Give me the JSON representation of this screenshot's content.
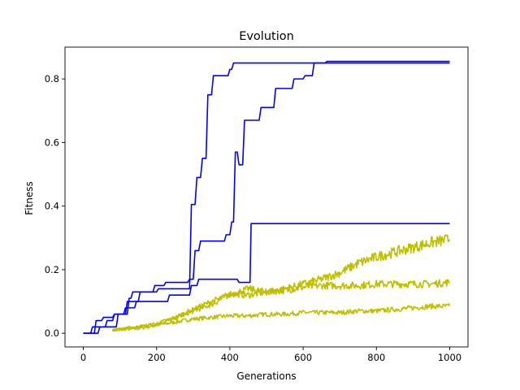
{
  "chart_data": {
    "type": "line",
    "title": "Evolution",
    "xlabel": "Generations",
    "ylabel": "Fitness",
    "xlim": [
      -50,
      1050
    ],
    "ylim": [
      -0.043,
      0.9
    ],
    "xticks": [
      0,
      200,
      400,
      600,
      800,
      1000
    ],
    "xtick_labels": [
      "0",
      "200",
      "400",
      "600",
      "800",
      "1000"
    ],
    "yticks": [
      0.0,
      0.2,
      0.4,
      0.6,
      0.8
    ],
    "ytick_labels": [
      "0.0",
      "0.2",
      "0.4",
      "0.6",
      "0.8"
    ],
    "grid": false,
    "legend": "none",
    "series": [
      {
        "color": "#0000ff",
        "style": "step",
        "points": [
          [
            0,
            0.0
          ],
          [
            20,
            0.0
          ],
          [
            25,
            0.02
          ],
          [
            60,
            0.02
          ],
          [
            65,
            0.04
          ],
          [
            80,
            0.04
          ],
          [
            85,
            0.06
          ],
          [
            110,
            0.06
          ],
          [
            115,
            0.08
          ],
          [
            140,
            0.08
          ],
          [
            145,
            0.1
          ],
          [
            230,
            0.1
          ],
          [
            235,
            0.12
          ],
          [
            290,
            0.12
          ],
          [
            295,
            0.15
          ],
          [
            310,
            0.15
          ],
          [
            315,
            0.17
          ],
          [
            420,
            0.17
          ],
          [
            425,
            0.16
          ],
          [
            455,
            0.16
          ],
          [
            458,
            0.345
          ],
          [
            1000,
            0.345
          ]
        ]
      },
      {
        "color": "#0000ff",
        "style": "step",
        "points": [
          [
            0,
            0.0
          ],
          [
            30,
            0.0
          ],
          [
            35,
            0.04
          ],
          [
            50,
            0.04
          ],
          [
            55,
            0.05
          ],
          [
            80,
            0.05
          ],
          [
            85,
            0.06
          ],
          [
            120,
            0.06
          ],
          [
            125,
            0.11
          ],
          [
            130,
            0.11
          ],
          [
            135,
            0.13
          ],
          [
            190,
            0.13
          ],
          [
            195,
            0.15
          ],
          [
            220,
            0.15
          ],
          [
            225,
            0.16
          ],
          [
            285,
            0.16
          ],
          [
            290,
            0.17
          ],
          [
            300,
            0.17
          ],
          [
            305,
            0.26
          ],
          [
            315,
            0.26
          ],
          [
            320,
            0.29
          ],
          [
            385,
            0.29
          ],
          [
            390,
            0.31
          ],
          [
            400,
            0.31
          ],
          [
            405,
            0.35
          ],
          [
            410,
            0.35
          ],
          [
            415,
            0.57
          ],
          [
            420,
            0.57
          ],
          [
            425,
            0.53
          ],
          [
            435,
            0.53
          ],
          [
            440,
            0.67
          ],
          [
            480,
            0.67
          ],
          [
            485,
            0.71
          ],
          [
            520,
            0.71
          ],
          [
            525,
            0.77
          ],
          [
            570,
            0.77
          ],
          [
            575,
            0.8
          ],
          [
            600,
            0.8
          ],
          [
            605,
            0.81
          ],
          [
            625,
            0.81
          ],
          [
            630,
            0.85
          ],
          [
            1000,
            0.85
          ]
        ]
      },
      {
        "color": "#0000ff",
        "style": "step",
        "points": [
          [
            0,
            0.0
          ],
          [
            40,
            0.0
          ],
          [
            45,
            0.02
          ],
          [
            90,
            0.02
          ],
          [
            95,
            0.06
          ],
          [
            115,
            0.06
          ],
          [
            120,
            0.1
          ],
          [
            150,
            0.1
          ],
          [
            155,
            0.13
          ],
          [
            200,
            0.13
          ],
          [
            205,
            0.14
          ],
          [
            225,
            0.14
          ],
          [
            230,
            0.14
          ],
          [
            290,
            0.14
          ],
          [
            295,
            0.405
          ],
          [
            305,
            0.405
          ],
          [
            310,
            0.49
          ],
          [
            320,
            0.49
          ],
          [
            325,
            0.55
          ],
          [
            335,
            0.55
          ],
          [
            340,
            0.75
          ],
          [
            350,
            0.75
          ],
          [
            355,
            0.81
          ],
          [
            395,
            0.81
          ],
          [
            400,
            0.83
          ],
          [
            405,
            0.83
          ],
          [
            410,
            0.85
          ],
          [
            660,
            0.85
          ],
          [
            665,
            0.855
          ],
          [
            1000,
            0.855
          ]
        ]
      },
      {
        "color": "#bfbf00",
        "style": "noisy",
        "points": [
          [
            80,
            0.01
          ],
          [
            150,
            0.015
          ],
          [
            200,
            0.025
          ],
          [
            250,
            0.035
          ],
          [
            300,
            0.045
          ],
          [
            350,
            0.05
          ],
          [
            400,
            0.055
          ],
          [
            450,
            0.055
          ],
          [
            500,
            0.06
          ],
          [
            550,
            0.06
          ],
          [
            600,
            0.065
          ],
          [
            650,
            0.065
          ],
          [
            700,
            0.065
          ],
          [
            750,
            0.07
          ],
          [
            800,
            0.07
          ],
          [
            850,
            0.075
          ],
          [
            900,
            0.08
          ],
          [
            950,
            0.085
          ],
          [
            1000,
            0.085
          ]
        ]
      },
      {
        "color": "#bfbf00",
        "style": "noisy",
        "points": [
          [
            80,
            0.01
          ],
          [
            150,
            0.02
          ],
          [
            200,
            0.03
          ],
          [
            250,
            0.045
          ],
          [
            300,
            0.07
          ],
          [
            350,
            0.09
          ],
          [
            380,
            0.11
          ],
          [
            400,
            0.125
          ],
          [
            450,
            0.12
          ],
          [
            500,
            0.13
          ],
          [
            550,
            0.135
          ],
          [
            600,
            0.145
          ],
          [
            650,
            0.15
          ],
          [
            700,
            0.15
          ],
          [
            750,
            0.15
          ],
          [
            800,
            0.155
          ],
          [
            850,
            0.155
          ],
          [
            900,
            0.155
          ],
          [
            950,
            0.155
          ],
          [
            1000,
            0.16
          ]
        ]
      },
      {
        "color": "#bfbf00",
        "style": "noisy",
        "points": [
          [
            80,
            0.01
          ],
          [
            150,
            0.02
          ],
          [
            200,
            0.03
          ],
          [
            250,
            0.05
          ],
          [
            300,
            0.075
          ],
          [
            350,
            0.1
          ],
          [
            400,
            0.12
          ],
          [
            450,
            0.14
          ],
          [
            500,
            0.13
          ],
          [
            550,
            0.14
          ],
          [
            600,
            0.155
          ],
          [
            650,
            0.17
          ],
          [
            700,
            0.19
          ],
          [
            750,
            0.22
          ],
          [
            800,
            0.24
          ],
          [
            850,
            0.255
          ],
          [
            900,
            0.27
          ],
          [
            950,
            0.285
          ],
          [
            1000,
            0.295
          ]
        ]
      }
    ]
  }
}
